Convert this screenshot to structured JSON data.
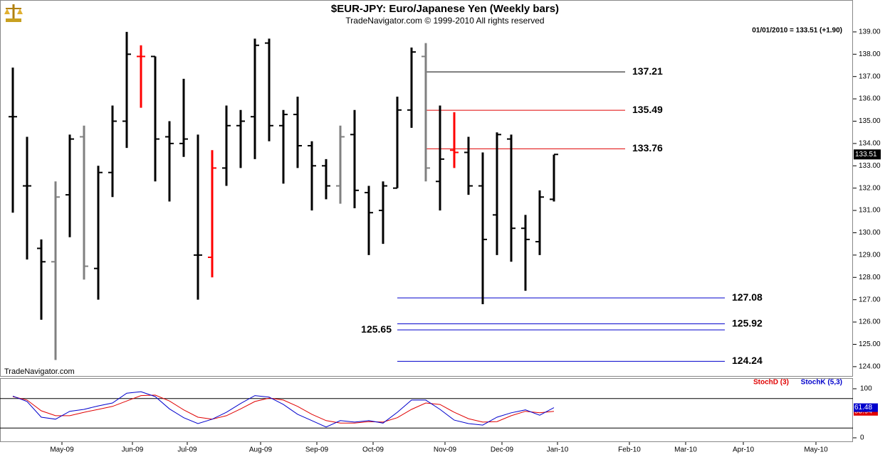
{
  "chart_data": [
    {
      "type": "ohlc",
      "title": "$EUR-JPY:  Euro/Japanese Yen  (Weekly bars)",
      "subtitle": "TradeNavigator.com © 1999-2010 All rights reserved",
      "watermark": "TradeNavigator.com",
      "info": "01/01/2010 = 133.51 (+1.90)",
      "ohlc": {
        "open": [
          135.2,
          132.1,
          129.3,
          128.7,
          131.7,
          134.3,
          128.4,
          132.7,
          135.0,
          137.9,
          137.9,
          134.3,
          134.0,
          129.0,
          128.9,
          132.9,
          134.8,
          135.2,
          138.5,
          134.8,
          135.3,
          133.9,
          133.0,
          132.1,
          134.4,
          131.8,
          131.0,
          132.0,
          135.5,
          137.9,
          132.3,
          133.7,
          133.6,
          132.1,
          130.8,
          134.2,
          130.2,
          129.6,
          131.5
        ],
        "high": [
          137.4,
          134.3,
          129.7,
          132.3,
          134.4,
          134.8,
          133.0,
          135.7,
          139.0,
          138.4,
          137.9,
          135.0,
          136.9,
          134.4,
          133.7,
          135.7,
          135.5,
          138.7,
          138.7,
          135.5,
          136.1,
          134.1,
          133.3,
          134.8,
          135.5,
          132.1,
          132.3,
          136.1,
          138.3,
          138.5,
          135.7,
          135.4,
          134.3,
          133.6,
          134.5,
          134.4,
          130.8,
          131.9,
          133.5
        ],
        "low": [
          130.9,
          128.8,
          126.1,
          124.3,
          129.8,
          127.9,
          127.0,
          131.6,
          133.8,
          135.6,
          132.3,
          131.4,
          133.4,
          127.0,
          128.0,
          132.1,
          132.9,
          133.3,
          134.1,
          132.2,
          132.9,
          131.0,
          131.5,
          131.3,
          131.1,
          129.0,
          129.5,
          132.0,
          134.7,
          132.3,
          131.0,
          132.9,
          131.7,
          126.8,
          129.0,
          128.7,
          127.4,
          129.0,
          131.4
        ],
        "close": [
          135.2,
          132.1,
          128.7,
          131.6,
          134.2,
          128.5,
          132.7,
          135.0,
          138.0,
          137.9,
          134.2,
          134.0,
          134.2,
          129.0,
          132.9,
          134.8,
          135.0,
          138.4,
          134.8,
          135.3,
          133.9,
          133.0,
          132.1,
          134.3,
          131.9,
          130.9,
          132.1,
          135.5,
          138.1,
          132.9,
          133.3,
          133.6,
          132.1,
          129.7,
          134.4,
          130.2,
          129.7,
          131.6,
          133.51
        ]
      },
      "bar_colors": [
        "#000000",
        "#000000",
        "#000000",
        "#808080",
        "#000000",
        "#808080",
        "#000000",
        "#000000",
        "#000000",
        "#ff0000",
        "#000000",
        "#000000",
        "#000000",
        "#000000",
        "#ff0000",
        "#000000",
        "#000000",
        "#000000",
        "#000000",
        "#000000",
        "#000000",
        "#000000",
        "#000000",
        "#808080",
        "#000000",
        "#000000",
        "#000000",
        "#000000",
        "#000000",
        "#808080",
        "#000000",
        "#ff0000",
        "#000000",
        "#000000",
        "#000000",
        "#000000",
        "#000000",
        "#000000",
        "#000000"
      ],
      "levels": [
        {
          "value": 137.21,
          "color": "#000000"
        },
        {
          "value": 135.49,
          "color": "#e00000"
        },
        {
          "value": 133.76,
          "color": "#e00000"
        },
        {
          "value": 127.08,
          "color": "#0000cc"
        },
        {
          "value": 125.92,
          "color": "#0000cc"
        },
        {
          "value": 125.65,
          "color": "#0000cc"
        },
        {
          "value": 124.24,
          "color": "#0000cc"
        }
      ],
      "xlim": [
        -0.9,
        59
      ],
      "ylim": [
        123.55,
        140.43
      ],
      "yticks": [
        {
          "value": 139,
          "label": "139.00"
        },
        {
          "value": 138,
          "label": "138.00"
        },
        {
          "value": 137,
          "label": "137.00"
        },
        {
          "value": 136,
          "label": "136.00"
        },
        {
          "value": 135,
          "label": "135.00"
        },
        {
          "value": 134,
          "label": "134.00"
        },
        {
          "value": 133,
          "label": "133.00"
        },
        {
          "value": 132,
          "label": "132.00"
        },
        {
          "value": 131,
          "label": "131.00"
        },
        {
          "value": 130,
          "label": "130.00"
        },
        {
          "value": 129,
          "label": "129.00"
        },
        {
          "value": 128,
          "label": "128.00"
        },
        {
          "value": 127,
          "label": "127.00"
        },
        {
          "value": 126,
          "label": "126.00"
        },
        {
          "value": 125,
          "label": "125.00"
        },
        {
          "value": 124,
          "label": "124.00"
        }
      ]
    },
    {
      "type": "line",
      "series": [
        {
          "name": "StochD (3)",
          "color": "#e00000",
          "values": [
            84,
            77,
            55,
            45,
            45,
            52,
            58,
            64,
            75,
            86,
            87,
            75,
            57,
            42,
            38,
            45,
            59,
            74,
            81,
            77,
            64,
            48,
            35,
            30,
            30,
            33,
            32,
            41,
            58,
            71,
            68,
            52,
            39,
            32,
            33,
            45,
            54,
            51,
            53.94
          ]
        },
        {
          "name": "StochK (5,3)",
          "color": "#0000cc",
          "values": [
            85,
            74,
            42,
            38,
            54,
            58,
            65,
            71,
            91,
            94,
            84,
            59,
            41,
            29,
            38,
            52,
            70,
            86,
            83,
            68,
            48,
            35,
            22,
            35,
            32,
            35,
            30,
            52,
            77,
            77,
            58,
            36,
            29,
            26,
            42,
            51,
            57,
            46,
            61.48
          ]
        }
      ],
      "levels": [
        20,
        80
      ],
      "ylim": [
        -8.7,
        121.7
      ],
      "yticks": [
        0,
        100
      ],
      "xlim": [
        -0.9,
        59
      ],
      "xticks": [
        {
          "value": 3.45,
          "label": "May-09"
        },
        {
          "value": 8.4,
          "label": "Jun-09"
        },
        {
          "value": 12.25,
          "label": "Jul-09"
        },
        {
          "value": 17.4,
          "label": "Aug-09"
        },
        {
          "value": 21.35,
          "label": "Sep-09"
        },
        {
          "value": 25.3,
          "label": "Oct-09"
        },
        {
          "value": 30.35,
          "label": "Nov-09"
        },
        {
          "value": 34.35,
          "label": "Dec-09"
        },
        {
          "value": 38.25,
          "label": "Jan-10"
        },
        {
          "value": 43.3,
          "label": "Feb-10"
        },
        {
          "value": 47.25,
          "label": "Mar-10"
        },
        {
          "value": 51.3,
          "label": "Apr-10"
        },
        {
          "value": 56.4,
          "label": "May-10"
        }
      ]
    }
  ]
}
